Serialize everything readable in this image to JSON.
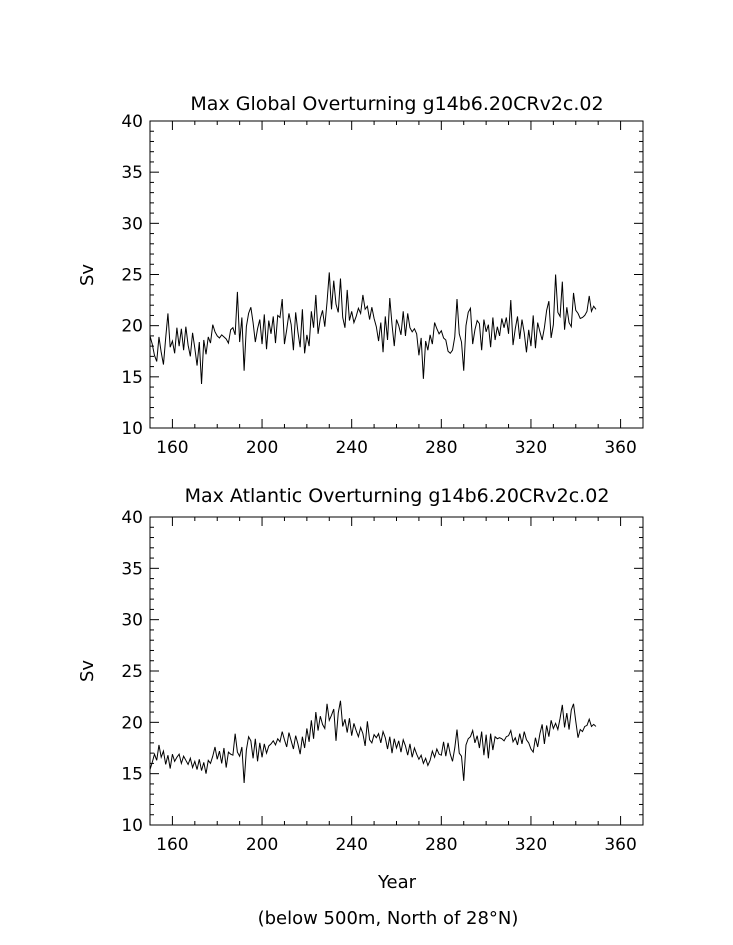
{
  "footnote": "(below 500m, North of 28°N)",
  "chart_data": [
    {
      "type": "line",
      "title": "Max Global Overturning g14b6.20CRv2c.02",
      "xlabel": "",
      "ylabel": "Sv",
      "xlim": [
        150,
        370
      ],
      "ylim": [
        10,
        40
      ],
      "xticks": [
        160,
        200,
        240,
        280,
        320,
        360
      ],
      "yticks": [
        10,
        15,
        20,
        25,
        30,
        35,
        40
      ],
      "grid": false,
      "series": [
        {
          "name": "",
          "x_start": 150,
          "x_step": 1,
          "values": [
            19.0,
            18.2,
            17.1,
            16.5,
            18.9,
            17.4,
            16.2,
            18.8,
            21.2,
            17.9,
            18.5,
            17.3,
            19.8,
            18.0,
            19.7,
            17.6,
            19.9,
            18.1,
            17.0,
            19.3,
            17.8,
            16.1,
            18.4,
            14.3,
            18.6,
            17.2,
            18.9,
            18.3,
            20.1,
            19.4,
            19.0,
            18.8,
            19.1,
            18.9,
            18.7,
            18.3,
            19.6,
            19.8,
            19.1,
            23.3,
            18.4,
            20.8,
            15.6,
            19.9,
            21.2,
            21.8,
            20.3,
            18.4,
            19.7,
            20.6,
            18.2,
            21.1,
            17.7,
            20.5,
            19.2,
            20.9,
            18.3,
            21.0,
            20.8,
            22.6,
            18.2,
            19.6,
            21.2,
            20.1,
            17.6,
            21.3,
            19.4,
            17.9,
            21.6,
            17.3,
            19.1,
            18.0,
            21.4,
            19.8,
            23.0,
            19.2,
            20.7,
            21.5,
            19.9,
            22.3,
            25.2,
            21.6,
            24.4,
            22.1,
            21.3,
            24.6,
            20.8,
            19.8,
            23.5,
            20.5,
            21.4,
            20.3,
            20.9,
            21.7,
            21.2,
            23.0,
            21.6,
            21.9,
            20.6,
            21.8,
            20.7,
            19.9,
            18.5,
            20.3,
            17.4,
            20.9,
            18.6,
            22.7,
            20.1,
            18.0,
            20.6,
            20.0,
            19.1,
            21.4,
            19.0,
            21.2,
            19.8,
            19.4,
            19.7,
            19.2,
            17.1,
            18.8,
            14.8,
            18.5,
            17.6,
            19.1,
            18.2,
            20.3,
            19.7,
            19.2,
            19.5,
            18.8,
            18.6,
            17.5,
            17.3,
            17.6,
            18.9,
            22.6,
            19.2,
            18.4,
            15.6,
            20.0,
            21.3,
            21.7,
            18.2,
            19.6,
            20.5,
            20.2,
            17.6,
            20.6,
            19.4,
            20.1,
            17.9,
            20.8,
            18.6,
            19.9,
            19.0,
            20.7,
            19.8,
            20.8,
            19.2,
            22.5,
            18.1,
            19.7,
            20.9,
            18.7,
            20.6,
            19.3,
            17.4,
            19.6,
            18.0,
            21.0,
            17.8,
            20.3,
            19.4,
            18.6,
            19.8,
            21.5,
            22.4,
            18.8,
            20.1,
            25.0,
            21.3,
            20.9,
            24.3,
            19.6,
            21.8,
            20.3,
            19.9,
            23.2,
            21.5,
            21.2,
            20.7,
            20.8,
            21.0,
            21.4,
            22.9,
            21.4,
            21.9,
            21.6
          ]
        }
      ]
    },
    {
      "type": "line",
      "title": "Max Atlantic Overturning g14b6.20CRv2c.02",
      "xlabel": "Year",
      "ylabel": "Sv",
      "xlim": [
        150,
        370
      ],
      "ylim": [
        10,
        40
      ],
      "xticks": [
        160,
        200,
        240,
        280,
        320,
        360
      ],
      "yticks": [
        10,
        15,
        20,
        25,
        30,
        35,
        40
      ],
      "grid": false,
      "series": [
        {
          "name": "",
          "x_start": 150,
          "x_step": 1,
          "values": [
            15.4,
            16.1,
            16.9,
            16.3,
            17.8,
            16.6,
            17.2,
            15.9,
            16.8,
            15.5,
            16.9,
            16.2,
            16.6,
            16.9,
            16.0,
            16.7,
            16.3,
            15.9,
            16.5,
            15.6,
            16.2,
            15.4,
            16.4,
            15.3,
            16.1,
            15.0,
            16.3,
            16.0,
            16.7,
            17.6,
            16.4,
            17.2,
            16.0,
            17.5,
            15.6,
            17.1,
            16.9,
            16.8,
            18.9,
            17.1,
            16.7,
            17.6,
            14.1,
            17.3,
            18.6,
            18.2,
            16.5,
            18.4,
            16.2,
            18.0,
            16.6,
            17.9,
            17.0,
            17.7,
            17.9,
            18.2,
            17.8,
            18.4,
            18.1,
            19.1,
            18.3,
            17.6,
            19.0,
            18.2,
            17.4,
            18.7,
            17.9,
            16.9,
            18.6,
            17.5,
            19.4,
            18.1,
            20.2,
            18.4,
            21.0,
            19.2,
            20.6,
            19.8,
            19.4,
            21.8,
            20.2,
            20.7,
            21.3,
            18.2,
            20.9,
            22.1,
            19.6,
            20.3,
            19.0,
            20.4,
            18.7,
            19.9,
            19.2,
            18.6,
            19.5,
            18.9,
            17.7,
            20.1,
            18.3,
            18.0,
            18.8,
            18.5,
            18.9,
            18.0,
            19.1,
            18.5,
            17.4,
            18.6,
            17.0,
            18.4,
            17.5,
            18.2,
            17.1,
            18.3,
            17.7,
            16.8,
            17.9,
            16.6,
            17.5,
            16.9,
            16.4,
            16.8,
            16.0,
            16.5,
            15.8,
            16.3,
            17.2,
            16.6,
            17.4,
            16.9,
            16.8,
            18.1,
            16.7,
            18.0,
            16.9,
            16.2,
            17.5,
            19.3,
            17.0,
            16.7,
            14.3,
            17.8,
            18.4,
            18.6,
            19.2,
            18.0,
            18.7,
            17.5,
            19.1,
            16.8,
            18.8,
            16.5,
            18.9,
            17.3,
            18.6,
            18.4,
            18.5,
            18.4,
            18.2,
            18.6,
            18.7,
            19.2,
            18.1,
            18.5,
            17.8,
            18.9,
            17.9,
            19.1,
            18.3,
            18.0,
            17.4,
            17.1,
            18.5,
            17.6,
            18.9,
            19.8,
            17.9,
            19.7,
            18.6,
            20.2,
            19.4,
            19.9,
            19.3,
            20.4,
            21.7,
            19.5,
            20.9,
            19.3,
            21.2,
            21.8,
            20.1,
            18.5,
            19.3,
            19.1,
            19.6,
            19.7,
            20.3,
            19.6,
            19.8,
            19.6
          ]
        }
      ]
    }
  ]
}
